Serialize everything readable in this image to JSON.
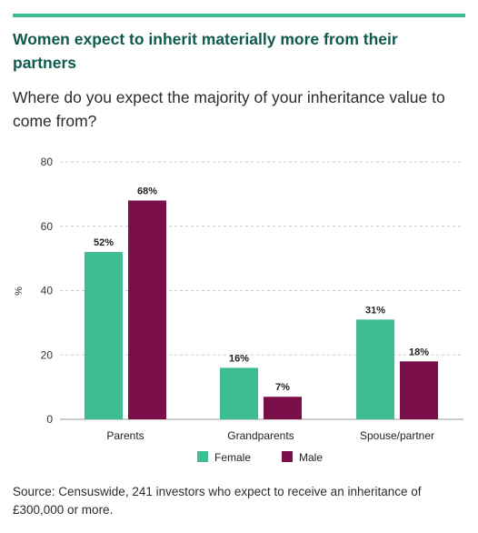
{
  "header": {
    "title": "Women expect to inherit materially more from their partners",
    "subtitle": "Where do you expect the majority of your inheritance value to come from?"
  },
  "chart_data": {
    "type": "bar",
    "categories": [
      "Parents",
      "Grandparents",
      "Spouse/partner"
    ],
    "series": [
      {
        "name": "Female",
        "values": [
          52,
          16,
          31
        ],
        "labels": [
          "52%",
          "16%",
          "31%"
        ],
        "color": "#3dbd91"
      },
      {
        "name": "Male",
        "values": [
          68,
          7,
          18
        ],
        "labels": [
          "68%",
          "7%",
          "18%"
        ],
        "color": "#7a0f49"
      }
    ],
    "ylabel": "%",
    "ylim": [
      0,
      80
    ],
    "yticks": [
      0,
      20,
      40,
      60,
      80
    ],
    "grid": true,
    "legend": "bottom-center"
  },
  "footer": {
    "source": "Source: Censuswide, 241 investors who expect to receive an inheritance of £300,000 or more."
  }
}
